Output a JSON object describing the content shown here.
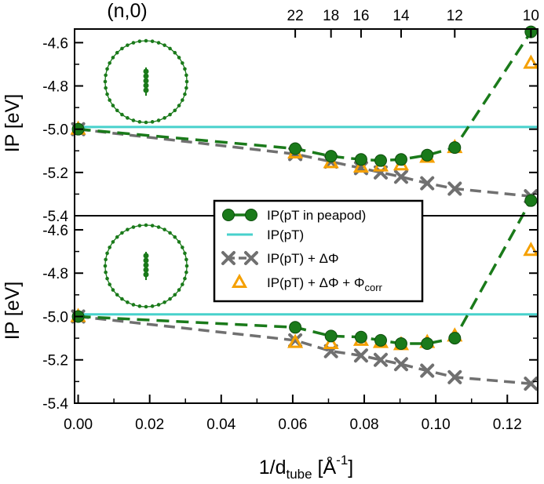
{
  "chart_data": [
    {
      "type": "line",
      "panel": "top",
      "ylabel": "IP [eV]",
      "xlabel": "1/d_tube [Å^-1]",
      "xlim": [
        -0.001,
        0.1285
      ],
      "ylim": [
        -5.4,
        -4.537
      ],
      "yticks": [
        -4.6,
        -4.8,
        -5.0,
        -5.2,
        -5.4
      ],
      "ytick_labels": [
        "-4.6",
        "-4.8",
        "-5.0",
        "-5.2",
        "-5.4"
      ],
      "top_axis": {
        "label": "(n,0)",
        "ticks": [
          {
            "n": "22",
            "x": 0.0607
          },
          {
            "n": "18",
            "x": 0.0707
          },
          {
            "n": "16",
            "x": 0.0791
          },
          {
            "n": "14",
            "x": 0.0903
          },
          {
            "n": "12",
            "x": 0.1053
          },
          {
            "n": "10",
            "x": 0.1266
          }
        ]
      },
      "series": [
        {
          "name": "IP(pT in peapod)",
          "style": "peapod",
          "color": "#1a7a1a",
          "x": [
            0.0,
            0.0607,
            0.0707,
            0.0791,
            0.0846,
            0.0903,
            0.0976,
            0.1053,
            0.1266
          ],
          "y": [
            -5.0,
            -5.09,
            -5.125,
            -5.14,
            -5.145,
            -5.14,
            -5.12,
            -5.085,
            -4.55
          ]
        },
        {
          "name": "IP(pT)",
          "style": "ippt",
          "color": "#48d1cc",
          "x": [
            -0.001,
            0.1285
          ],
          "y": [
            -4.99,
            -4.99
          ]
        },
        {
          "name": "IP(pT) + ΔΦ",
          "style": "delta",
          "color": "#707070",
          "x": [
            0.0,
            0.0607,
            0.0707,
            0.0791,
            0.0846,
            0.0903,
            0.0976,
            0.1053,
            0.1266
          ],
          "y": [
            -5.0,
            -5.115,
            -5.15,
            -5.18,
            -5.2,
            -5.22,
            -5.25,
            -5.275,
            -5.31
          ]
        },
        {
          "name": "IP(pT) + ΔΦ + Φcorr",
          "style": "corr",
          "color": "#f5a000",
          "x": [
            0.0,
            0.0607,
            0.0707,
            0.0791,
            0.0846,
            0.0903,
            0.0976,
            0.1053,
            0.1266
          ],
          "y": [
            -5.0,
            -5.11,
            -5.155,
            -5.175,
            -5.17,
            -5.165,
            -5.13,
            -5.085,
            -4.695
          ]
        }
      ]
    },
    {
      "type": "line",
      "panel": "bottom",
      "ylabel": "IP [eV]",
      "xlabel": "1/d_tube [Å^-1]",
      "xlim": [
        -0.001,
        0.1285
      ],
      "ylim": [
        -5.4,
        -4.535
      ],
      "yticks": [
        -4.6,
        -4.8,
        -5.0,
        -5.2,
        -5.4
      ],
      "ytick_labels": [
        "-4.6",
        "-4.8",
        "-5.0",
        "-5.2",
        "-5.4"
      ],
      "xticks": [
        0.0,
        0.02,
        0.04,
        0.06,
        0.08,
        0.1,
        0.12
      ],
      "xtick_labels": [
        "0.00",
        "0.02",
        "0.04",
        "0.06",
        "0.08",
        "0.10",
        "0.12"
      ],
      "series": [
        {
          "name": "IP(pT in peapod)",
          "style": "peapod",
          "color": "#1a7a1a",
          "x": [
            0.0,
            0.0607,
            0.0707,
            0.0791,
            0.0846,
            0.0903,
            0.0976,
            0.1053,
            0.1266
          ],
          "y": [
            -5.0,
            -5.05,
            -5.09,
            -5.095,
            -5.11,
            -5.125,
            -5.125,
            -5.1,
            -4.465
          ]
        },
        {
          "name": "IP(pT)",
          "style": "ippt",
          "color": "#48d1cc",
          "x": [
            -0.001,
            0.1285
          ],
          "y": [
            -4.99,
            -4.99
          ]
        },
        {
          "name": "IP(pT) + ΔΦ",
          "style": "delta",
          "color": "#707070",
          "x": [
            0.0,
            0.0607,
            0.0707,
            0.0791,
            0.0846,
            0.0903,
            0.0976,
            0.1053,
            0.1266
          ],
          "y": [
            -5.0,
            -5.11,
            -5.16,
            -5.18,
            -5.2,
            -5.22,
            -5.25,
            -5.28,
            -5.31
          ]
        },
        {
          "name": "IP(pT) + ΔΦ + Φcorr",
          "style": "corr",
          "color": "#f5a000",
          "x": [
            0.0,
            0.0607,
            0.0707,
            0.0791,
            0.0846,
            0.0903,
            0.0976,
            0.1053,
            0.1266
          ],
          "y": [
            -5.0,
            -5.12,
            -5.125,
            -5.11,
            -5.12,
            -5.13,
            -5.12,
            -5.09,
            -4.695
          ]
        }
      ]
    }
  ],
  "legend": {
    "entries": [
      {
        "text": "IP(pT in peapod)",
        "style": "peapod"
      },
      {
        "text": "IP(pT)",
        "style": "ippt"
      },
      {
        "text": "IP(pT) + ΔΦ",
        "style": "delta"
      },
      {
        "text": "IP(pT) + ΔΦ + Φ",
        "sub": "corr",
        "style": "corr"
      }
    ]
  },
  "labels": {
    "ylabel_top": "IP [eV]",
    "ylabel_bottom": "IP [eV]",
    "xlabel_main": "1/d",
    "xlabel_sub": "tube",
    "xlabel_unit": " [Å",
    "xlabel_sup": "-1",
    "xlabel_close": "]",
    "top_axis_label": "(n,0)"
  },
  "colors": {
    "peapod": "#1a7a1a",
    "ippt": "#48d1cc",
    "delta": "#707070",
    "corr": "#f5a000"
  }
}
